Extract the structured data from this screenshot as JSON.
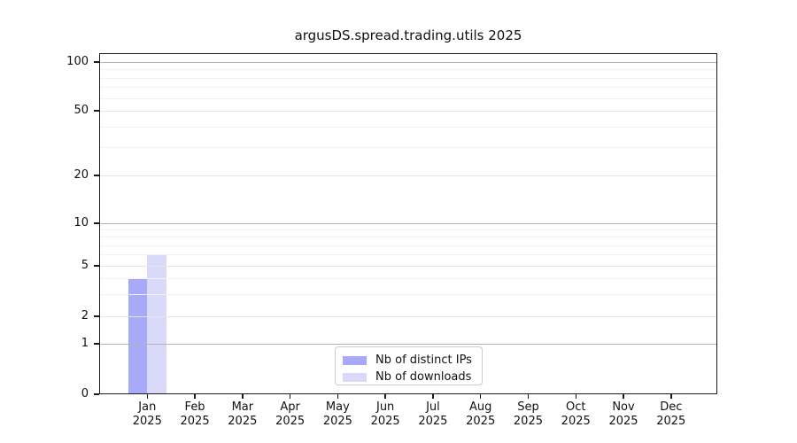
{
  "chart_data": {
    "type": "bar",
    "title": "argusDS.spread.trading.utils 2025",
    "categories": [
      "Jan",
      "Feb",
      "Mar",
      "Apr",
      "May",
      "Jun",
      "Jul",
      "Aug",
      "Sep",
      "Oct",
      "Nov",
      "Dec"
    ],
    "x_tick_second_line": "2025",
    "series": [
      {
        "name": "Nb of distinct IPs",
        "color": "#a9a9fa",
        "values": [
          4,
          0,
          0,
          0,
          0,
          0,
          0,
          0,
          0,
          0,
          0,
          0
        ]
      },
      {
        "name": "Nb of downloads",
        "color": "#d9d9fa",
        "values": [
          6,
          0,
          0,
          0,
          0,
          0,
          0,
          0,
          0,
          0,
          0,
          0
        ]
      }
    ],
    "y_ticks": [
      0,
      1,
      2,
      5,
      10,
      20,
      50,
      100
    ],
    "y_minor_ticks": [
      3,
      4,
      6,
      7,
      8,
      9,
      30,
      40,
      60,
      70,
      80,
      90
    ],
    "ylim": [
      0,
      115
    ],
    "yscale": "log-like (linear segment between 0 and 1)",
    "grid": "on",
    "legend": {
      "position": "lower center, inside plot"
    }
  }
}
